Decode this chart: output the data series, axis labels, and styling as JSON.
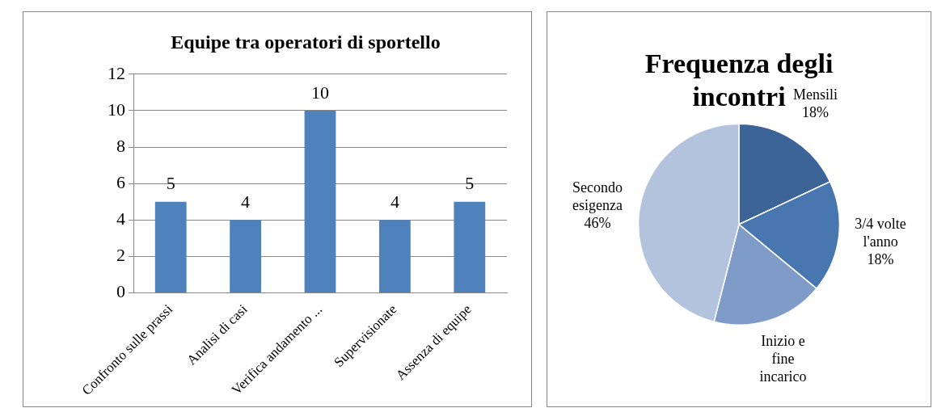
{
  "chart_data": [
    {
      "type": "bar",
      "title": "Equipe tra operatori di sportello",
      "categories": [
        "Confronto sulle prassi",
        "Analisi di casi",
        "Verifica andamento ...",
        "Supervisionate",
        "Assenza di equipe"
      ],
      "values": [
        5,
        4,
        10,
        4,
        5
      ],
      "color": "#4f81bd",
      "ylim": [
        0,
        12
      ],
      "yticks": [
        0,
        2,
        4,
        6,
        8,
        10,
        12
      ],
      "grid": "y",
      "data_labels": true,
      "legend": false
    },
    {
      "type": "pie",
      "title": "Frequenza degli incontri",
      "categories": [
        "Mensili",
        "3/4 volte l'anno",
        "Inizio e fine incarico",
        "Secondo esigenza"
      ],
      "values": [
        18,
        18,
        18,
        46
      ],
      "colors": [
        "#3c6496",
        "#4877b0",
        "#7f9bc7",
        "#b4c3dd"
      ],
      "value_labels": [
        "18%",
        "18%",
        null,
        "46%"
      ],
      "legend": false
    }
  ]
}
